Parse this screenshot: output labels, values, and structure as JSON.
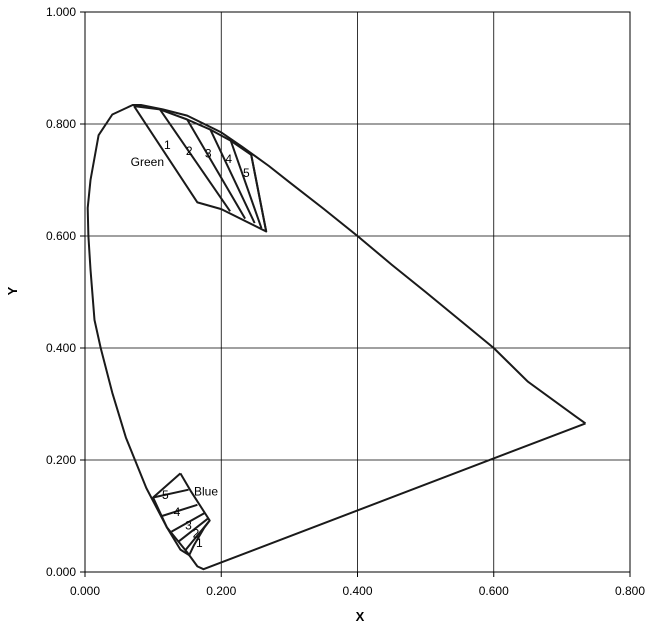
{
  "chart_data": {
    "type": "line",
    "title": "",
    "xlabel": "X",
    "ylabel": "Y",
    "xlim": [
      0,
      0.8
    ],
    "ylim": [
      0,
      1.0
    ],
    "grid": true,
    "x_ticks": [
      "0.000",
      "0.200",
      "0.400",
      "0.600",
      "0.800"
    ],
    "y_ticks": [
      "0.000",
      "0.200",
      "0.400",
      "0.600",
      "0.800",
      "1.000"
    ],
    "series": [
      {
        "points": [
          [
            0.7347,
            0.2653
          ],
          [
            0.72,
            0.278
          ],
          [
            0.65,
            0.34
          ],
          [
            0.6,
            0.4
          ],
          [
            0.55,
            0.45
          ],
          [
            0.5,
            0.5
          ],
          [
            0.45,
            0.549
          ],
          [
            0.4,
            0.6
          ],
          [
            0.35,
            0.649
          ],
          [
            0.3,
            0.696
          ],
          [
            0.27,
            0.725
          ],
          [
            0.23,
            0.76
          ],
          [
            0.2,
            0.785
          ],
          [
            0.15,
            0.815
          ],
          [
            0.114,
            0.826
          ],
          [
            0.082,
            0.834
          ],
          [
            0.07,
            0.834
          ],
          [
            0.04,
            0.817
          ],
          [
            0.02,
            0.78
          ],
          [
            0.008,
            0.7
          ],
          [
            0.004,
            0.65
          ],
          [
            0.005,
            0.6
          ],
          [
            0.008,
            0.54
          ],
          [
            0.014,
            0.45
          ],
          [
            0.023,
            0.4
          ],
          [
            0.04,
            0.32
          ],
          [
            0.06,
            0.24
          ],
          [
            0.09,
            0.15
          ],
          [
            0.12,
            0.08
          ],
          [
            0.15,
            0.035
          ],
          [
            0.165,
            0.01
          ],
          [
            0.174,
            0.005
          ],
          [
            0.7347,
            0.2653
          ]
        ]
      },
      {
        "points": [
          [
            0.072,
            0.832
          ],
          [
            0.11,
            0.826
          ],
          [
            0.15,
            0.808
          ],
          [
            0.184,
            0.79
          ],
          [
            0.214,
            0.77
          ],
          [
            0.244,
            0.745
          ],
          [
            0.266,
            0.608
          ],
          [
            0.2,
            0.648
          ],
          [
            0.165,
            0.66
          ],
          [
            0.072,
            0.832
          ]
        ]
      },
      {
        "points": [
          [
            0.14,
            0.176
          ],
          [
            0.155,
            0.145
          ],
          [
            0.183,
            0.092
          ],
          [
            0.175,
            0.079
          ],
          [
            0.16,
            0.048
          ],
          [
            0.153,
            0.03
          ],
          [
            0.14,
            0.04
          ],
          [
            0.12,
            0.08
          ],
          [
            0.1,
            0.133
          ],
          [
            0.14,
            0.176
          ]
        ]
      }
    ],
    "hatch_lines": [
      [
        [
          0.11,
          0.826
        ],
        [
          0.213,
          0.644
        ]
      ],
      [
        [
          0.15,
          0.808
        ],
        [
          0.235,
          0.631
        ]
      ],
      [
        [
          0.184,
          0.79
        ],
        [
          0.249,
          0.623
        ]
      ],
      [
        [
          0.214,
          0.77
        ],
        [
          0.259,
          0.614
        ]
      ],
      [
        [
          0.244,
          0.745
        ],
        [
          0.266,
          0.608
        ]
      ],
      [
        [
          0.1,
          0.133
        ],
        [
          0.152,
          0.147
        ]
      ],
      [
        [
          0.113,
          0.1
        ],
        [
          0.165,
          0.12
        ]
      ],
      [
        [
          0.127,
          0.072
        ],
        [
          0.175,
          0.105
        ]
      ],
      [
        [
          0.138,
          0.055
        ],
        [
          0.18,
          0.095
        ]
      ],
      [
        [
          0.148,
          0.04
        ],
        [
          0.183,
          0.092
        ]
      ]
    ],
    "annotations": [
      {
        "text": "Green",
        "x": 0.067,
        "y": 0.725
      },
      {
        "text": "1",
        "x": 0.116,
        "y": 0.755
      },
      {
        "text": "2",
        "x": 0.148,
        "y": 0.745
      },
      {
        "text": "3",
        "x": 0.176,
        "y": 0.74
      },
      {
        "text": "4",
        "x": 0.206,
        "y": 0.73
      },
      {
        "text": "5",
        "x": 0.232,
        "y": 0.705
      },
      {
        "text": "Blue",
        "x": 0.16,
        "y": 0.137
      },
      {
        "text": "5",
        "x": 0.113,
        "y": 0.13
      },
      {
        "text": "4",
        "x": 0.13,
        "y": 0.1
      },
      {
        "text": "3",
        "x": 0.147,
        "y": 0.076
      },
      {
        "text": "2",
        "x": 0.158,
        "y": 0.062
      },
      {
        "text": "1",
        "x": 0.163,
        "y": 0.045
      }
    ]
  }
}
